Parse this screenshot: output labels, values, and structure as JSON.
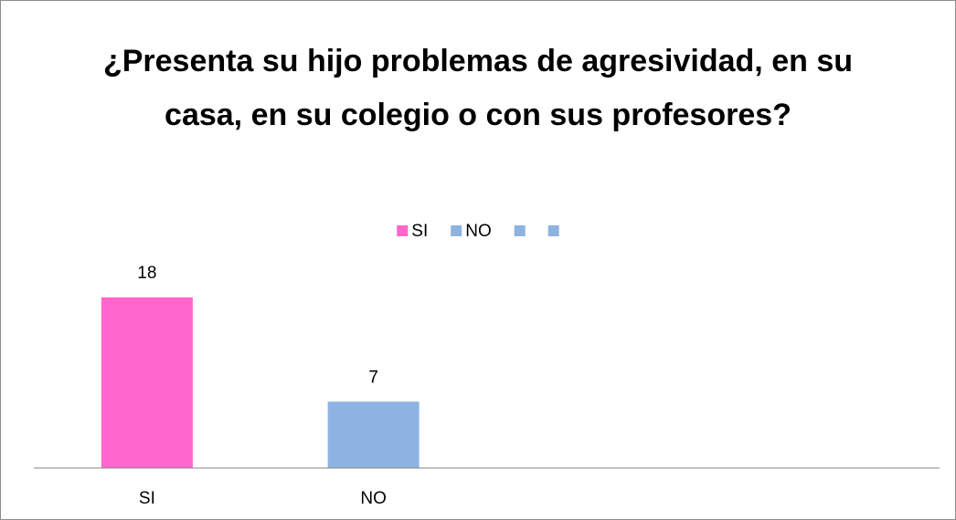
{
  "chart_data": {
    "type": "bar",
    "title": "¿Presenta  su hijo problemas de agresividad, en su casa, en su colegio o con sus profesores?",
    "categories": [
      "SI",
      "NO",
      null,
      null
    ],
    "values": [
      18,
      7,
      null,
      null
    ],
    "colors": [
      "#ff66cc",
      "#8db3e2",
      "#8db3e2",
      "#8db3e2"
    ],
    "legend": "top"
  }
}
